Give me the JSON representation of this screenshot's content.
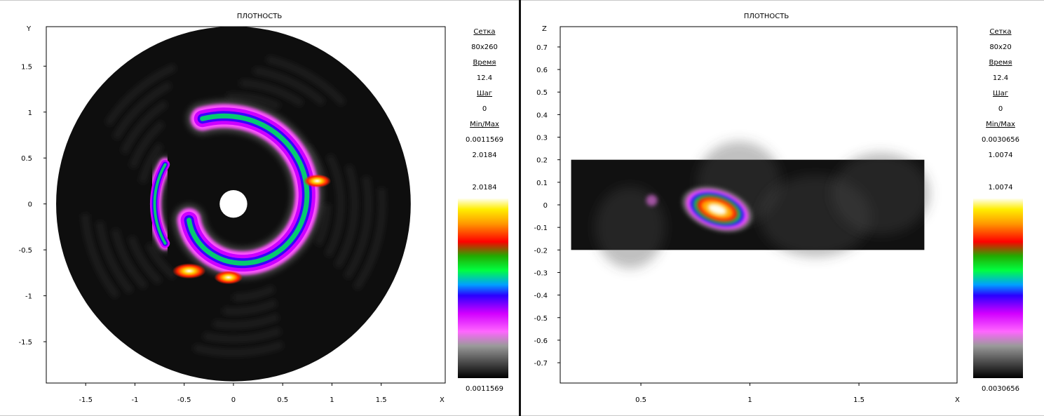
{
  "chart_data": [
    {
      "type": "heatmap",
      "title": "ПЛОТНОСТЬ",
      "xlabel": "X",
      "ylabel": "Y",
      "xlim": [
        -1.9,
        2.15
      ],
      "ylim": [
        -1.95,
        1.93
      ],
      "xticks": [
        -1.5,
        -1,
        -0.5,
        0,
        0.5,
        1,
        1.5
      ],
      "yticks": [
        1.5,
        1,
        0.5,
        0,
        -0.5,
        -1,
        -1.5
      ],
      "xtick_labels": [
        "-1.5",
        "-1",
        "-0.5",
        "0",
        "0.5",
        "1",
        "1.5"
      ],
      "ytick_labels": [
        "1.5",
        "1",
        "0.5",
        "0",
        "-0.5",
        "-1",
        "-1.5"
      ],
      "domain": {
        "shape": "annulus",
        "outer_radius": 1.8,
        "inner_radius": 0.14
      },
      "features": [
        {
          "kind": "spiral-arm",
          "start_deg": 200,
          "end_deg": 470,
          "radius_start": 0.48,
          "radius_end": 0.92
        },
        {
          "kind": "arc",
          "start_deg": 150,
          "end_deg": 210,
          "radius": 0.8
        },
        {
          "kind": "hotspot",
          "x": 0.85,
          "y": 0.25,
          "value": 1.4
        },
        {
          "kind": "hotspot",
          "x": -0.45,
          "y": -0.73,
          "value": 2.0
        },
        {
          "kind": "hotspot",
          "x": -0.05,
          "y": -0.8,
          "value": 1.5
        }
      ],
      "colorbar": {
        "min": 0.0011569,
        "max": 2.0184,
        "min_label": "0.0011569",
        "max_label": "2.0184"
      },
      "info": {
        "grid_label": "Сетка",
        "grid_value": "80x260",
        "time_label": "Время",
        "time_value": "12.4",
        "step_label": "Шаг",
        "step_value": "0",
        "minmax_label": "Min/Max",
        "min_value": "0.0011569",
        "max_value": "2.0184"
      }
    },
    {
      "type": "heatmap",
      "title": "ПЛОТНОСТЬ",
      "xlabel": "X",
      "ylabel": "Z",
      "xlim": [
        0.13,
        1.95
      ],
      "ylim": [
        -0.79,
        0.79
      ],
      "xticks": [
        0.5,
        1,
        1.5
      ],
      "yticks": [
        0.7,
        0.6,
        0.5,
        0.4,
        0.3,
        0.2,
        0.1,
        0,
        -0.1,
        -0.2,
        -0.3,
        -0.4,
        -0.5,
        -0.6,
        -0.7
      ],
      "xtick_labels": [
        "0.5",
        "1",
        "1.5"
      ],
      "ytick_labels": [
        "0.7",
        "0.6",
        "0.5",
        "0.4",
        "0.3",
        "0.2",
        "0.1",
        "0",
        "-0.1",
        "-0.2",
        "-0.3",
        "-0.4",
        "-0.5",
        "-0.6",
        "-0.7"
      ],
      "domain": {
        "shape": "rect",
        "x_range": [
          0.18,
          1.8
        ],
        "z_range": [
          -0.2,
          0.2
        ]
      },
      "features": [
        {
          "kind": "blob",
          "x": 0.85,
          "z": -0.02,
          "value": 1.0
        },
        {
          "kind": "spot",
          "x": 0.55,
          "z": 0.02,
          "value": 0.35
        }
      ],
      "colorbar": {
        "min": 0.0030656,
        "max": 1.0074,
        "min_label": "0.0030656",
        "max_label": "1.0074"
      },
      "info": {
        "grid_label": "Сетка",
        "grid_value": "80x20",
        "time_label": "Время",
        "time_value": "12.4",
        "step_label": "Шаг",
        "step_value": "0",
        "minmax_label": "Min/Max",
        "min_value": "0.0030656",
        "max_value": "1.0074"
      }
    }
  ],
  "colormap": [
    "#000000",
    "#3c3c3c",
    "#ffffff",
    "#ff00ff",
    "#0000ff",
    "#00ff00",
    "#ff0000",
    "#ffff00",
    "#ffffff"
  ]
}
